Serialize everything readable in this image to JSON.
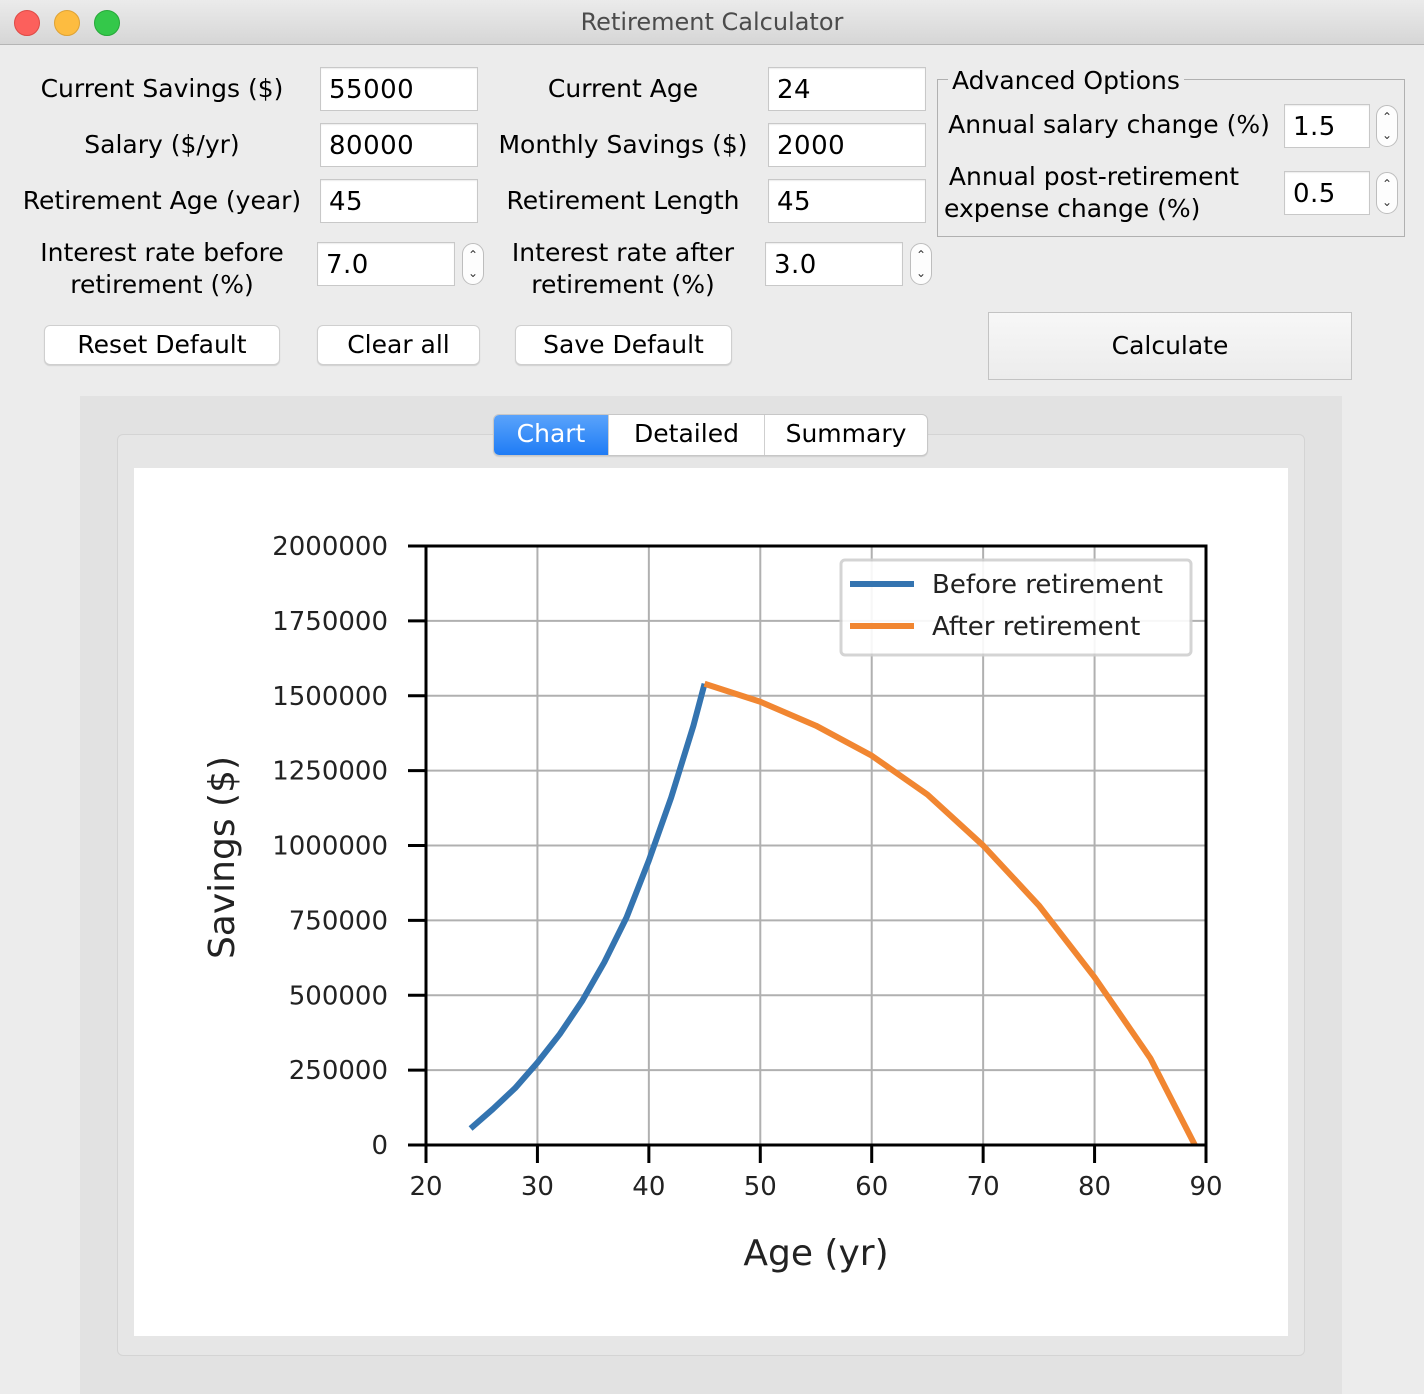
{
  "window": {
    "title": "Retirement Calculator"
  },
  "inputs": {
    "current_savings": {
      "label": "Current Savings ($)",
      "value": "55000"
    },
    "salary": {
      "label": "Salary ($/yr)",
      "value": "80000"
    },
    "retirement_age": {
      "label": "Retirement Age (year)",
      "value": "45"
    },
    "interest_before": {
      "label_line1": "Interest rate before",
      "label_line2": "retirement (%)",
      "value": "7.0"
    },
    "current_age": {
      "label": "Current Age",
      "value": "24"
    },
    "monthly_savings": {
      "label": "Monthly Savings ($)",
      "value": "2000"
    },
    "retirement_length": {
      "label": "Retirement Length",
      "value": "45"
    },
    "interest_after": {
      "label_line1": "Interest rate after",
      "label_line2": "retirement (%)",
      "value": "3.0"
    }
  },
  "advanced": {
    "title": "Advanced Options",
    "salary_change": {
      "label": "Annual salary change (%)",
      "value": "1.5"
    },
    "expense_change": {
      "label_line1": "Annual post-retirement",
      "label_line2": "expense change (%)",
      "value": "0.5"
    }
  },
  "buttons": {
    "reset": "Reset Default",
    "clear": "Clear all",
    "save": "Save Default",
    "calculate": "Calculate"
  },
  "tabs": [
    {
      "label": "Chart",
      "active": true
    },
    {
      "label": "Detailed",
      "active": false
    },
    {
      "label": "Summary",
      "active": false
    }
  ],
  "chart_data": {
    "type": "line",
    "xlabel": "Age (yr)",
    "ylabel": "Savings ($)",
    "xlim": [
      20,
      90
    ],
    "ylim": [
      0,
      2000000
    ],
    "xticks": [
      20,
      30,
      40,
      50,
      60,
      70,
      80,
      90
    ],
    "yticks": [
      0,
      250000,
      500000,
      750000,
      1000000,
      1250000,
      1500000,
      1750000,
      2000000
    ],
    "grid": true,
    "legend_position": "top-right",
    "series": [
      {
        "name": "Before retirement",
        "color": "#3474b0",
        "x": [
          24,
          26,
          28,
          30,
          32,
          34,
          36,
          38,
          40,
          42,
          44,
          45
        ],
        "y": [
          55000,
          120000,
          190000,
          275000,
          370000,
          480000,
          610000,
          760000,
          950000,
          1160000,
          1400000,
          1540000
        ]
      },
      {
        "name": "After retirement",
        "color": "#f18631",
        "x": [
          45,
          50,
          55,
          60,
          65,
          70,
          75,
          80,
          85,
          89
        ],
        "y": [
          1540000,
          1480000,
          1400000,
          1300000,
          1170000,
          1000000,
          800000,
          560000,
          290000,
          0
        ]
      }
    ]
  }
}
